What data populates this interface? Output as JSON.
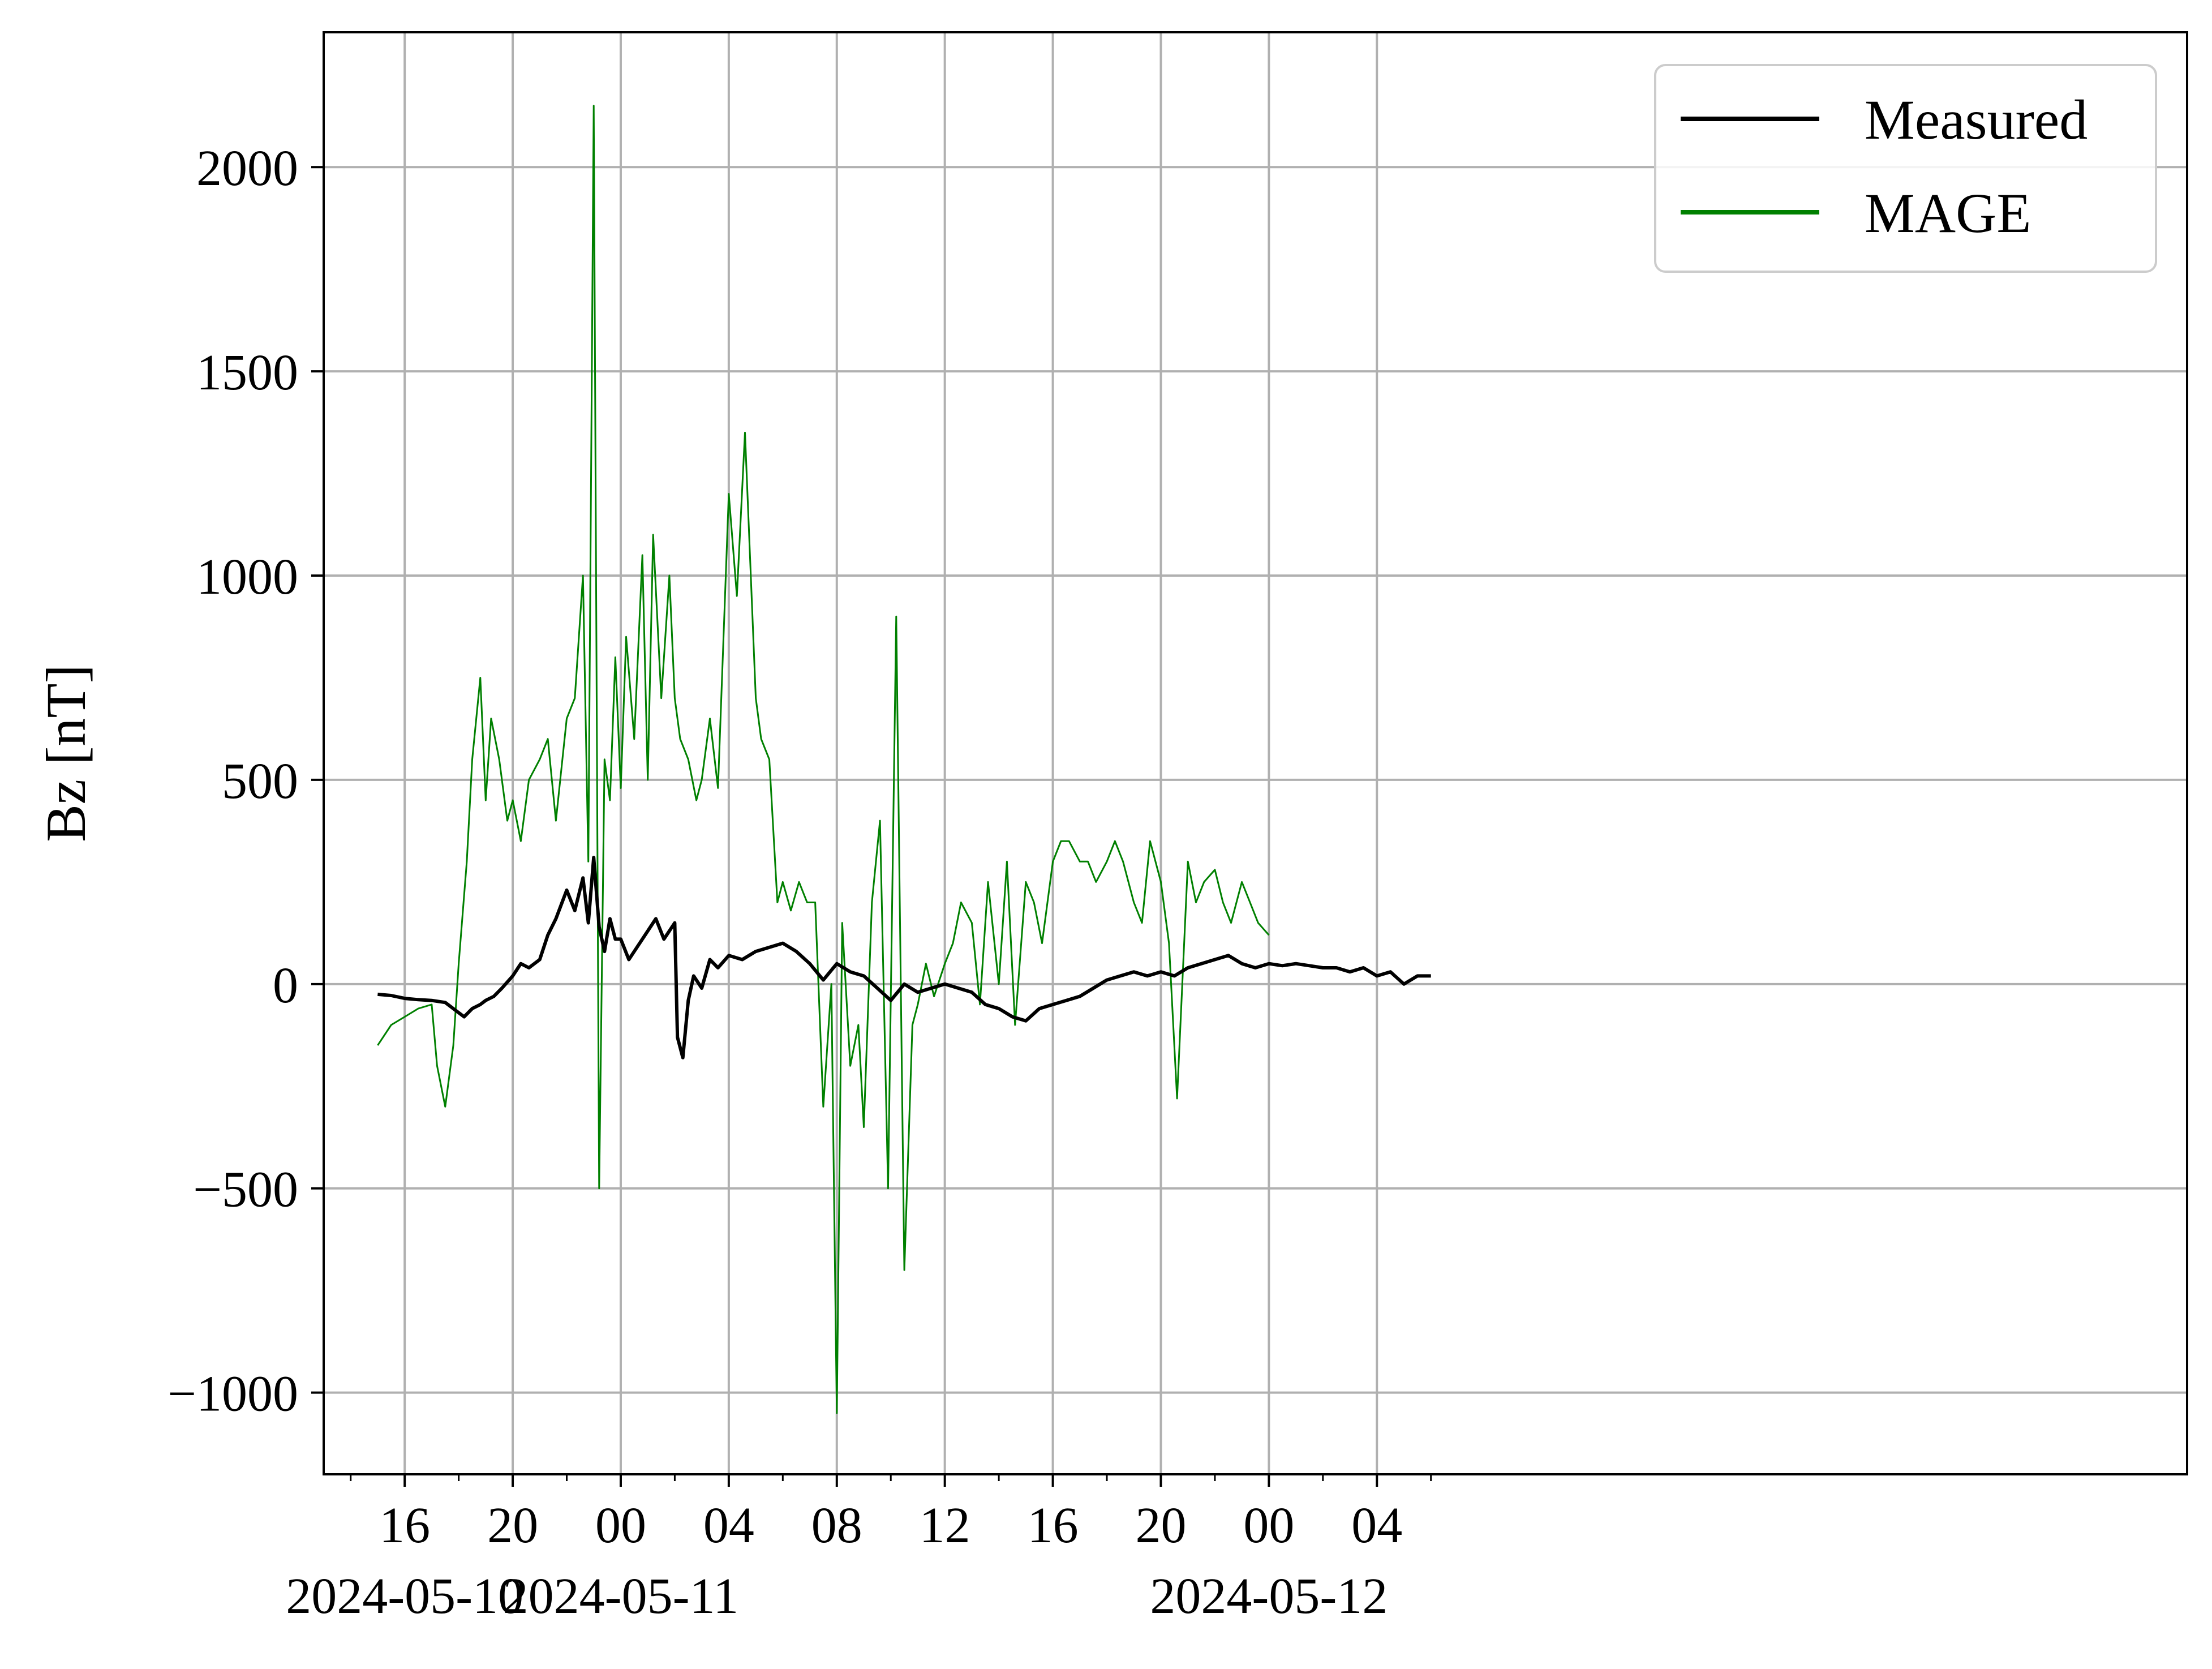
{
  "chart_data": {
    "type": "line",
    "title": "",
    "xlabel": "",
    "ylabel": "Bz [nT]",
    "x_units": "hours since 2024-05-10 00:00",
    "xlim": [
      13.0,
      82.0
    ],
    "ylim": [
      -1200,
      2330
    ],
    "grid": true,
    "legend_position": "top-right",
    "x_major_ticks": [
      {
        "x": 16,
        "label": "16",
        "date": "2024-05-10"
      },
      {
        "x": 20,
        "label": "20",
        "date": ""
      },
      {
        "x": 24,
        "label": "00",
        "date": "2024-05-11"
      },
      {
        "x": 28,
        "label": "04",
        "date": ""
      },
      {
        "x": 32,
        "label": "08",
        "date": ""
      },
      {
        "x": 36,
        "label": "12",
        "date": ""
      },
      {
        "x": 40,
        "label": "16",
        "date": ""
      },
      {
        "x": 44,
        "label": "20",
        "date": ""
      },
      {
        "x": 48,
        "label": "00",
        "date": "2024-05-12"
      },
      {
        "x": 52,
        "label": "04",
        "date": ""
      }
    ],
    "x_minor_ticks": [
      14,
      18,
      22,
      26,
      30,
      34,
      38,
      42,
      46,
      50,
      54
    ],
    "y_ticks": [
      {
        "y": -1000,
        "label": "−1000"
      },
      {
        "y": -500,
        "label": "−500"
      },
      {
        "y": 0,
        "label": "0"
      },
      {
        "y": 500,
        "label": "500"
      },
      {
        "y": 1000,
        "label": "1000"
      },
      {
        "y": 1500,
        "label": "1500"
      },
      {
        "y": 2000,
        "label": "2000"
      }
    ],
    "series": [
      {
        "name": "Measured",
        "color": "#000000",
        "x": [
          15.0,
          15.5,
          16.0,
          16.5,
          17.0,
          17.5,
          18.0,
          18.2,
          18.5,
          18.8,
          19.0,
          19.3,
          19.6,
          20.0,
          20.3,
          20.6,
          21.0,
          21.3,
          21.6,
          22.0,
          22.3,
          22.6,
          22.8,
          23.0,
          23.2,
          23.4,
          23.6,
          23.8,
          24.0,
          24.3,
          24.6,
          25.0,
          25.3,
          25.6,
          26.0,
          26.1,
          26.3,
          26.5,
          26.7,
          27.0,
          27.3,
          27.6,
          28.0,
          28.5,
          29.0,
          29.5,
          30.0,
          30.5,
          31.0,
          31.5,
          32.0,
          32.5,
          33.0,
          33.5,
          34.0,
          34.5,
          35.0,
          35.5,
          36.0,
          36.5,
          37.0,
          37.5,
          38.0,
          38.5,
          39.0,
          39.5,
          40.0,
          40.5,
          41.0,
          41.5,
          42.0,
          42.5,
          43.0,
          43.5,
          44.0,
          44.5,
          45.0,
          45.5,
          46.0,
          46.5,
          47.0,
          47.5,
          48.0,
          48.5,
          49.0,
          49.5,
          50.0,
          50.5,
          51.0,
          51.5,
          52.0,
          52.5,
          53.0,
          53.5,
          54.0
        ],
        "y": [
          -25,
          -28,
          -35,
          -38,
          -40,
          -45,
          -70,
          -80,
          -60,
          -50,
          -40,
          -30,
          -10,
          20,
          50,
          40,
          60,
          120,
          160,
          230,
          180,
          260,
          150,
          310,
          140,
          80,
          160,
          110,
          110,
          60,
          90,
          130,
          160,
          110,
          150,
          -130,
          -180,
          -40,
          20,
          -10,
          60,
          40,
          70,
          60,
          80,
          90,
          100,
          80,
          50,
          10,
          50,
          30,
          20,
          -10,
          -40,
          0,
          -20,
          -10,
          0,
          -10,
          -20,
          -50,
          -60,
          -80,
          -90,
          -60,
          -50,
          -40,
          -30,
          -10,
          10,
          20,
          30,
          20,
          30,
          20,
          40,
          50,
          60,
          70,
          50,
          40,
          50,
          45,
          50,
          45,
          40,
          40,
          30,
          40,
          20,
          30,
          0,
          20,
          20
        ]
      },
      {
        "name": "MAGE",
        "color": "#008000",
        "x": [
          15.0,
          15.5,
          16.0,
          16.5,
          17.0,
          17.2,
          17.5,
          17.8,
          18.0,
          18.3,
          18.5,
          18.8,
          19.0,
          19.2,
          19.5,
          19.8,
          20.0,
          20.3,
          20.6,
          21.0,
          21.3,
          21.6,
          22.0,
          22.3,
          22.6,
          22.8,
          23.0,
          23.2,
          23.4,
          23.6,
          23.8,
          24.0,
          24.2,
          24.5,
          24.8,
          25.0,
          25.2,
          25.5,
          25.8,
          26.0,
          26.2,
          26.5,
          26.8,
          27.0,
          27.3,
          27.6,
          28.0,
          28.3,
          28.6,
          29.0,
          29.2,
          29.5,
          29.8,
          30.0,
          30.3,
          30.6,
          30.9,
          31.2,
          31.5,
          31.8,
          32.0,
          32.2,
          32.5,
          32.8,
          33.0,
          33.3,
          33.6,
          33.9,
          34.2,
          34.5,
          34.8,
          35.0,
          35.3,
          35.6,
          36.0,
          36.3,
          36.6,
          37.0,
          37.3,
          37.6,
          38.0,
          38.3,
          38.6,
          39.0,
          39.3,
          39.6,
          40.0,
          40.3,
          40.6,
          41.0,
          41.3,
          41.6,
          42.0,
          42.3,
          42.6,
          43.0,
          43.3,
          43.6,
          44.0,
          44.3,
          44.6,
          45.0,
          45.3,
          45.6,
          46.0,
          46.3,
          46.6,
          47.0,
          47.3,
          47.6,
          48.0
        ],
        "y": [
          -150,
          -100,
          -80,
          -60,
          -50,
          -200,
          -300,
          -150,
          50,
          300,
          550,
          750,
          450,
          650,
          550,
          400,
          450,
          350,
          500,
          550,
          600,
          400,
          650,
          700,
          1000,
          300,
          2150,
          -500,
          550,
          450,
          800,
          480,
          850,
          600,
          1050,
          500,
          1100,
          700,
          1000,
          700,
          600,
          550,
          450,
          500,
          650,
          480,
          1200,
          950,
          1350,
          700,
          600,
          550,
          200,
          250,
          180,
          250,
          200,
          200,
          -300,
          0,
          -1050,
          150,
          -200,
          -100,
          -350,
          200,
          400,
          -500,
          900,
          -700,
          -100,
          -50,
          50,
          -30,
          50,
          100,
          200,
          150,
          -50,
          250,
          0,
          300,
          -100,
          250,
          200,
          100,
          300,
          350,
          350,
          300,
          300,
          250,
          300,
          350,
          300,
          200,
          150,
          350,
          250,
          100,
          -280,
          300,
          200,
          250,
          280,
          200,
          150,
          250,
          200,
          150,
          120
        ]
      }
    ]
  },
  "legend": {
    "items": [
      {
        "label": "Measured",
        "color": "#000000"
      },
      {
        "label": "MAGE",
        "color": "#008000"
      }
    ]
  }
}
